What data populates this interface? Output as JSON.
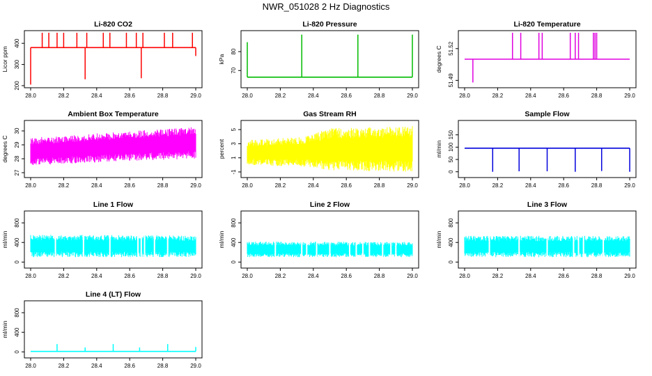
{
  "page": {
    "title": "NWR_051028  2 Hz Diagnostics"
  },
  "chart_data": [
    {
      "type": "line",
      "title": "Li-820 CO2",
      "ylabel": "Licor ppm",
      "xlabel": "",
      "xlim": [
        28.0,
        29.0
      ],
      "ylim": [
        200,
        450
      ],
      "xticks": [
        "28.0",
        "28.2",
        "28.4",
        "28.6",
        "28.8",
        "29.0"
      ],
      "yticks": [
        200,
        300,
        400
      ],
      "color": "#ff0000",
      "series": [
        {
          "baseline": 380,
          "spikes": [
            [
              28.0,
              205
            ],
            [
              28.07,
              450
            ],
            [
              28.11,
              450
            ],
            [
              28.16,
              450
            ],
            [
              28.2,
              450
            ],
            [
              28.28,
              450
            ],
            [
              28.33,
              230
            ],
            [
              28.34,
              450
            ],
            [
              28.44,
              450
            ],
            [
              28.48,
              450
            ],
            [
              28.58,
              450
            ],
            [
              28.64,
              450
            ],
            [
              28.67,
              235
            ],
            [
              28.68,
              450
            ],
            [
              28.81,
              450
            ],
            [
              28.86,
              450
            ],
            [
              28.98,
              450
            ],
            [
              29.0,
              340
            ]
          ]
        }
      ]
    },
    {
      "type": "line",
      "title": "Li-820 Pressure",
      "ylabel": "kPa",
      "xlabel": "",
      "xlim": [
        28.0,
        29.0
      ],
      "ylim": [
        62,
        90
      ],
      "xticks": [
        "28.0",
        "28.2",
        "28.4",
        "28.6",
        "28.8",
        "29.0"
      ],
      "yticks": [
        70,
        80
      ],
      "color": "#00bb00",
      "series": [
        {
          "baseline": 66.5,
          "spikes": [
            [
              28.0,
              85
            ],
            [
              28.33,
              89
            ],
            [
              28.67,
              89
            ],
            [
              29.0,
              89
            ]
          ]
        }
      ]
    },
    {
      "type": "line",
      "title": "Li-820 Temperature",
      "ylabel": "degrees C",
      "xlabel": "",
      "xlim": [
        28.0,
        29.0
      ],
      "ylim": [
        51.485,
        51.535
      ],
      "xticks": [
        "28.0",
        "28.2",
        "28.4",
        "28.6",
        "28.8",
        "29.0"
      ],
      "yticks": [
        51.49,
        51.52
      ],
      "color": "#e000e0",
      "series": [
        {
          "baseline": 51.51,
          "spikes": [
            [
              28.05,
              51.488
            ],
            [
              28.29,
              51.535
            ],
            [
              28.34,
              51.535
            ],
            [
              28.45,
              51.535
            ],
            [
              28.47,
              51.535
            ],
            [
              28.64,
              51.535
            ],
            [
              28.67,
              51.535
            ],
            [
              28.69,
              51.535
            ],
            [
              28.78,
              51.535
            ],
            [
              28.79,
              51.535
            ],
            [
              28.8,
              51.535
            ]
          ]
        }
      ]
    },
    {
      "type": "line",
      "title": "Ambient Box Temperature",
      "ylabel": "degrees C",
      "xlabel": "",
      "xlim": [
        28.0,
        29.0
      ],
      "ylim": [
        26.8,
        30.6
      ],
      "xticks": [
        "28.0",
        "28.2",
        "28.4",
        "28.6",
        "28.8",
        "29.0"
      ],
      "yticks": [
        27,
        28,
        29,
        30
      ],
      "color": "#ff00ff",
      "series": [
        {
          "band": [
            [
              28.0,
              27.5,
              29.5
            ],
            [
              28.5,
              27.8,
              29.9
            ],
            [
              29.0,
              28.0,
              30.3
            ]
          ]
        }
      ]
    },
    {
      "type": "line",
      "title": "Gas Stream RH",
      "ylabel": "percent",
      "xlabel": "",
      "xlim": [
        28.0,
        29.0
      ],
      "ylim": [
        -1.5,
        6
      ],
      "xticks": [
        "28.0",
        "28.2",
        "28.4",
        "28.6",
        "28.8",
        "29.0"
      ],
      "yticks": [
        -1,
        1,
        3,
        5
      ],
      "color": "#ffff00",
      "series": [
        {
          "band": [
            [
              28.0,
              0.0,
              3.5
            ],
            [
              28.35,
              -0.3,
              4.0
            ],
            [
              28.5,
              -0.8,
              5.2
            ],
            [
              29.0,
              -1.0,
              5.5
            ]
          ]
        }
      ]
    },
    {
      "type": "line",
      "title": "Sample Flow",
      "ylabel": "ml/min",
      "xlabel": "",
      "xlim": [
        28.0,
        29.0
      ],
      "ylim": [
        -15,
        200
      ],
      "xticks": [
        "28.0",
        "28.2",
        "28.4",
        "28.6",
        "28.8",
        "29.0"
      ],
      "yticks": [
        0,
        50,
        100,
        150
      ],
      "color": "#0000dd",
      "series": [
        {
          "baseline": 96,
          "spikes": [
            [
              28.17,
              0
            ],
            [
              28.33,
              2
            ],
            [
              28.5,
              2
            ],
            [
              28.67,
              0
            ],
            [
              28.83,
              3
            ],
            [
              29.0,
              0
            ]
          ]
        }
      ]
    },
    {
      "type": "line",
      "title": "Line 1 Flow",
      "ylabel": "ml/min",
      "xlabel": "",
      "xlim": [
        28.0,
        29.0
      ],
      "ylim": [
        -80,
        1000
      ],
      "xticks": [
        "28.0",
        "28.2",
        "28.4",
        "28.6",
        "28.8",
        "29.0"
      ],
      "yticks": [
        0,
        400,
        800
      ],
      "color": "#00ffff",
      "series": [
        {
          "band": [
            [
              28.0,
              100,
              560
            ],
            [
              29.0,
              100,
              540
            ]
          ],
          "gaps": [
            28.15,
            28.32,
            28.48,
            28.65,
            28.67,
            28.69,
            28.75,
            28.83
          ]
        }
      ]
    },
    {
      "type": "line",
      "title": "Line 2 Flow",
      "ylabel": "ml/min",
      "xlabel": "",
      "xlim": [
        28.0,
        29.0
      ],
      "ylim": [
        -80,
        1000
      ],
      "xticks": [
        "28.0",
        "28.2",
        "28.4",
        "28.6",
        "28.8",
        "29.0"
      ],
      "yticks": [
        0,
        400,
        800
      ],
      "color": "#00ffff",
      "series": [
        {
          "band": [
            [
              28.0,
              100,
              420
            ],
            [
              29.0,
              100,
              410
            ]
          ],
          "gaps": [
            28.17,
            28.33,
            28.36,
            28.42,
            28.5,
            28.62,
            28.66,
            28.7,
            28.74,
            28.82,
            28.87,
            28.9
          ]
        }
      ]
    },
    {
      "type": "line",
      "title": "Line 3 Flow",
      "ylabel": "ml/min",
      "xlabel": "",
      "xlim": [
        28.0,
        29.0
      ],
      "ylim": [
        -80,
        1000
      ],
      "xticks": [
        "28.0",
        "28.2",
        "28.4",
        "28.6",
        "28.8",
        "29.0"
      ],
      "yticks": [
        0,
        400,
        800
      ],
      "color": "#00ffff",
      "series": [
        {
          "band": [
            [
              28.0,
              100,
              540
            ],
            [
              29.0,
              100,
              530
            ]
          ],
          "gaps": [
            28.15,
            28.33,
            28.5,
            28.66,
            28.69,
            28.72,
            28.84
          ]
        }
      ]
    },
    {
      "type": "line",
      "title": "Line 4 (LT) Flow",
      "ylabel": "ml/min",
      "xlabel": "",
      "xlim": [
        28.0,
        29.0
      ],
      "ylim": [
        -80,
        1000
      ],
      "xticks": [
        "28.0",
        "28.2",
        "28.4",
        "28.6",
        "28.8",
        "29.0"
      ],
      "yticks": [
        0,
        400,
        800
      ],
      "color": "#00ffff",
      "series": [
        {
          "baseline": 10,
          "spikes": [
            [
              28.16,
              160
            ],
            [
              28.33,
              90
            ],
            [
              28.5,
              160
            ],
            [
              28.66,
              90
            ],
            [
              28.83,
              160
            ],
            [
              29.0,
              100
            ]
          ]
        }
      ]
    }
  ]
}
